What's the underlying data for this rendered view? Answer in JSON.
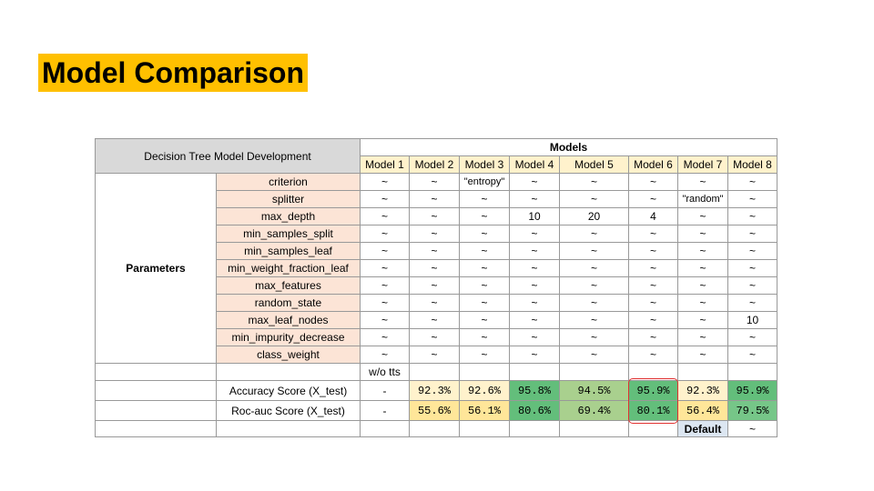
{
  "slide_title": "Model Comparison",
  "table": {
    "corner_label": "Decision Tree Model Development",
    "models_label": "Models",
    "model_names": [
      "Model 1",
      "Model 2",
      "Model 3",
      "Model 4",
      "Model 5",
      "Model 6",
      "Model 7",
      "Model 8"
    ],
    "parameters_label": "Parameters",
    "parameters": [
      {
        "name": "criterion",
        "values": [
          "~",
          "~",
          "\"entropy\"",
          "~",
          "~",
          "~",
          "~",
          "~"
        ]
      },
      {
        "name": "splitter",
        "values": [
          "~",
          "~",
          "~",
          "~",
          "~",
          "~",
          "\"random\"",
          "~"
        ]
      },
      {
        "name": "max_depth",
        "values": [
          "~",
          "~",
          "~",
          "10",
          "20",
          "4",
          "~",
          "~"
        ]
      },
      {
        "name": "min_samples_split",
        "values": [
          "~",
          "~",
          "~",
          "~",
          "~",
          "~",
          "~",
          "~"
        ]
      },
      {
        "name": "min_samples_leaf",
        "values": [
          "~",
          "~",
          "~",
          "~",
          "~",
          "~",
          "~",
          "~"
        ]
      },
      {
        "name": "min_weight_fraction_leaf",
        "values": [
          "~",
          "~",
          "~",
          "~",
          "~",
          "~",
          "~",
          "~"
        ]
      },
      {
        "name": "max_features",
        "values": [
          "~",
          "~",
          "~",
          "~",
          "~",
          "~",
          "~",
          "~"
        ]
      },
      {
        "name": "random_state",
        "values": [
          "~",
          "~",
          "~",
          "~",
          "~",
          "~",
          "~",
          "~"
        ]
      },
      {
        "name": "max_leaf_nodes",
        "values": [
          "~",
          "~",
          "~",
          "~",
          "~",
          "~",
          "~",
          "10"
        ]
      },
      {
        "name": "min_impurity_decrease",
        "values": [
          "~",
          "~",
          "~",
          "~",
          "~",
          "~",
          "~",
          "~"
        ]
      },
      {
        "name": "class_weight",
        "values": [
          "~",
          "~",
          "~",
          "~",
          "~",
          "~",
          "~",
          "~"
        ]
      }
    ],
    "wotts_label": "w/o tts",
    "scores": [
      {
        "label": "Accuracy Score (X_test)",
        "model1": "-",
        "values": [
          "92.3%",
          "92.6%",
          "95.8%",
          "94.5%",
          "95.9%",
          "92.3%",
          "95.9%"
        ],
        "colors": [
          "#fff2cc",
          "#fff2cc",
          "#63be7b",
          "#a9d08e",
          "#63be7b",
          "#fff2cc",
          "#63be7b"
        ]
      },
      {
        "label": "Roc-auc Score (X_test)",
        "model1": "-",
        "values": [
          "55.6%",
          "56.1%",
          "80.6%",
          "69.4%",
          "80.1%",
          "56.4%",
          "79.5%"
        ],
        "colors": [
          "#ffe699",
          "#ffe699",
          "#63be7b",
          "#a9d08e",
          "#63be7b",
          "#ffe699",
          "#76c688"
        ]
      }
    ],
    "default_label": "Default",
    "default_symbol": "~"
  },
  "highlight_color": "#e03030"
}
